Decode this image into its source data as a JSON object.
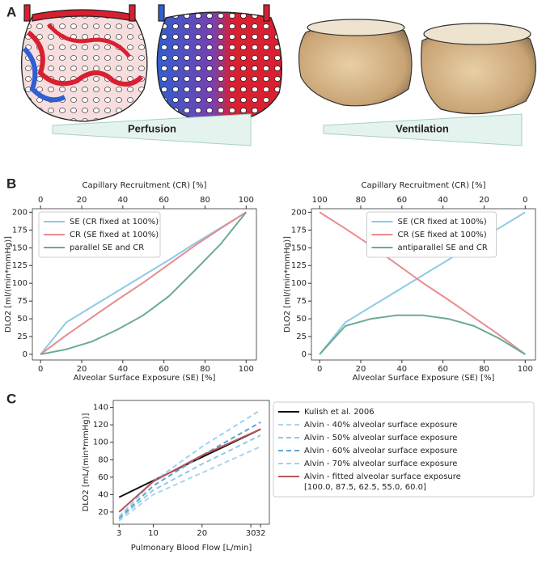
{
  "panel_labels": [
    "A",
    "B",
    "C"
  ],
  "panel_a": {
    "wedges": [
      "Perfusion",
      "Ventilation"
    ]
  },
  "chart_data": [
    {
      "type": "line",
      "xlabel": "Alveolar Surface Exposure (SE) [%]",
      "ylabel": "DLO2 [ml/(min*mmHg)]",
      "x2label": "Capillary Recruitment (CR) [%]",
      "x": [
        0,
        12.5,
        25,
        37.5,
        50,
        62.5,
        75,
        87.5,
        100
      ],
      "series": [
        {
          "name": "SE (CR fixed at 100%)",
          "color": "#8ecae6",
          "values": [
            0,
            45,
            67,
            89,
            111,
            133,
            156,
            178,
            200
          ]
        },
        {
          "name": "CR (SE fixed at 100%)",
          "color": "#e88c8f",
          "values": [
            0,
            27,
            52,
            77,
            101,
            127,
            153,
            177,
            200
          ]
        },
        {
          "name": "parallel SE and CR",
          "color": "#6aab94",
          "values": [
            0,
            7,
            18,
            35,
            55,
            82,
            118,
            155,
            200
          ]
        }
      ],
      "xlim": [
        -4,
        105
      ],
      "xticks": [
        0,
        20,
        40,
        60,
        80,
        100
      ],
      "x2lim": [
        -4,
        105
      ],
      "x2ticks": [
        0,
        20,
        40,
        60,
        80,
        100
      ],
      "ylim": [
        -8,
        205
      ],
      "yticks": [
        0,
        25,
        50,
        75,
        100,
        125,
        150,
        175,
        200
      ],
      "legend": "upper left"
    },
    {
      "type": "line",
      "xlabel": "Alveolar Surface Exposure (SE) [%]",
      "ylabel": "DLO2 [ml/(min*mmHg)]",
      "x2label": "Capillary Recruitment (CR) [%]",
      "x": [
        0,
        12.5,
        25,
        37.5,
        50,
        62.5,
        75,
        87.5,
        100
      ],
      "series": [
        {
          "name": "SE (CR fixed at 100%)",
          "color": "#8ecae6",
          "values": [
            0,
            45,
            67,
            89,
            111,
            133,
            156,
            178,
            200
          ]
        },
        {
          "name": "CR (SE fixed at 100%)",
          "color": "#e88c8f",
          "values": [
            200,
            177,
            153,
            127,
            101,
            77,
            52,
            27,
            0
          ]
        },
        {
          "name": "antiparallel SE and CR",
          "color": "#6aab94",
          "values": [
            0,
            40,
            50,
            55,
            55,
            50,
            40,
            22,
            0
          ]
        }
      ],
      "xlim": [
        -4,
        105
      ],
      "xticks": [
        0,
        20,
        40,
        60,
        80,
        100
      ],
      "x2lim": [
        104,
        -5
      ],
      "x2ticks": [
        100,
        80,
        60,
        40,
        20,
        0
      ],
      "ylim": [
        -8,
        205
      ],
      "yticks": [
        0,
        25,
        50,
        75,
        100,
        125,
        150,
        175,
        200
      ],
      "legend": "upper center"
    },
    {
      "type": "line",
      "xlabel": "Pulmonary Blood Flow [L/min]",
      "ylabel": "DLO2 [mL/(min*mmHg)]",
      "x": [
        3,
        10,
        20,
        32
      ],
      "series": [
        {
          "name": "Kulish et al. 2006",
          "color": "#111111",
          "values": [
            37,
            56,
            83,
            115
          ]
        },
        {
          "name": "Alvin - 40% alveolar surface exposure",
          "color": "#a9d6ee",
          "dash": true,
          "values": [
            10,
            40,
            65,
            95
          ]
        },
        {
          "name": "Alvin - 50% alveolar surface exposure",
          "color": "#8ecae6",
          "dash": true,
          "values": [
            12,
            45,
            75,
            108
          ]
        },
        {
          "name": "Alvin - 60% alveolar surface exposure",
          "color": "#5fa3cf",
          "dash": true,
          "values": [
            13,
            50,
            85,
            123
          ]
        },
        {
          "name": "Alvin - 70% alveolar surface exposure",
          "color": "#9dd3ef",
          "dash": true,
          "values": [
            15,
            55,
            95,
            137
          ]
        },
        {
          "name": "Alvin - fitted alveolar surface exposure",
          "legend_note": "[100.0, 87.5, 62.5, 55.0, 60.0]",
          "color": "#b5555a",
          "values": [
            20,
            55,
            85,
            115
          ]
        }
      ],
      "xlim": [
        1.8,
        33.8
      ],
      "xticks": [
        3,
        10,
        20,
        30,
        32
      ],
      "ylim": [
        6,
        148
      ],
      "yticks": [
        20,
        40,
        60,
        80,
        100,
        120,
        140
      ],
      "legend": "outside right"
    }
  ]
}
